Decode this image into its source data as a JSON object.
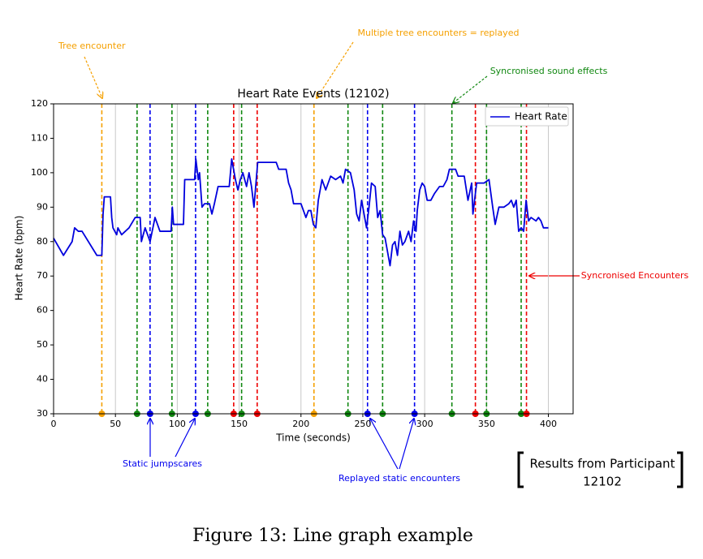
{
  "chart_data": {
    "type": "line",
    "title": "Heart Rate Events (12102)",
    "x_label": "Time (seconds)",
    "y_label": "Heart Rate (bpm)",
    "xlim": [
      0,
      420
    ],
    "ylim": [
      30,
      120
    ],
    "xticks": [
      0,
      50,
      100,
      150,
      200,
      250,
      300,
      350,
      400
    ],
    "yticks": [
      30,
      40,
      50,
      60,
      70,
      80,
      90,
      100,
      110,
      120
    ],
    "grid": "x",
    "legend": "upper right",
    "x": [
      0,
      8,
      15,
      17,
      20,
      23,
      35,
      39,
      40,
      41,
      46,
      47,
      48,
      51,
      52,
      55,
      61,
      66,
      70,
      71,
      74,
      77,
      78,
      82,
      86,
      87,
      95,
      96,
      97,
      105,
      106,
      114,
      115,
      117,
      118,
      120,
      122,
      126,
      128,
      130,
      133,
      142,
      144,
      147,
      149,
      151,
      153,
      156,
      158,
      160,
      162,
      165,
      180,
      182,
      188,
      190,
      192,
      194,
      200,
      202,
      204,
      206,
      208,
      210,
      212,
      214,
      217,
      220,
      222,
      224,
      228,
      232,
      234,
      236,
      240,
      243,
      245,
      247,
      249,
      251,
      253,
      255,
      257,
      260,
      262,
      264,
      266,
      268,
      270,
      272,
      274,
      276,
      278,
      280,
      282,
      284,
      287,
      289,
      291,
      293,
      294,
      296,
      298,
      300,
      302,
      305,
      308,
      312,
      315,
      318,
      320,
      325,
      327,
      332,
      335,
      338,
      339,
      342,
      348,
      352,
      355,
      357,
      360,
      364,
      368,
      370,
      372,
      374,
      376,
      378,
      380,
      382,
      384,
      386,
      390,
      392,
      394,
      396,
      400
    ],
    "series": [
      {
        "name": "Heart Rate",
        "color": "#0000dd",
        "values": [
          81,
          76,
          80,
          84,
          83,
          83,
          76,
          76,
          88,
          93,
          93,
          87,
          84,
          82,
          84,
          82,
          84,
          87,
          87,
          80,
          84,
          81,
          80,
          87,
          83,
          83,
          83,
          90,
          85,
          85,
          98,
          98,
          104,
          98,
          100,
          90,
          91,
          91,
          88,
          91,
          96,
          96,
          104,
          98,
          95,
          98,
          100,
          96,
          100,
          96,
          90,
          103,
          103,
          101,
          101,
          97,
          95,
          91,
          91,
          89,
          87,
          89,
          89,
          85,
          84,
          92,
          98,
          95,
          97,
          99,
          98,
          99,
          97,
          101,
          100,
          95,
          88,
          86,
          92,
          88,
          84,
          90,
          97,
          96,
          87,
          89,
          82,
          81,
          77,
          73,
          79,
          80,
          76,
          83,
          79,
          80,
          83,
          80,
          86,
          83,
          89,
          95,
          97,
          96,
          92,
          92,
          94,
          96,
          96,
          98,
          101,
          101,
          99,
          99,
          92,
          97,
          88,
          97,
          97,
          98,
          90,
          85,
          90,
          90,
          91,
          92,
          90,
          92,
          83,
          84,
          83,
          92,
          86,
          87,
          86,
          87,
          86,
          84,
          84
        ]
      }
    ],
    "events": {
      "x": [
        39,
        67.5,
        78,
        95.7,
        114.8,
        124.6,
        145.6,
        152,
        164.6,
        210.5,
        238,
        253.8,
        266,
        291.8,
        322,
        341,
        350,
        378,
        382.3
      ],
      "colors": [
        "#f5a000",
        "#118811",
        "#0000ee",
        "#118811",
        "#0000ee",
        "#118811",
        "#ee0000",
        "#118811",
        "#ee0000",
        "#f5a000",
        "#118811",
        "#0000ee",
        "#118811",
        "#0000ee",
        "#118811",
        "#ee0000",
        "#118811",
        "#118811",
        "#ee0000"
      ]
    },
    "annotations": [
      "Tree encounter",
      "Multiple tree encounters = replayed",
      "Syncronised sound effects",
      "Syncronised Encounters",
      "Static jumpscares",
      "Replayed static encounters"
    ],
    "annotation_colors": [
      "#f5a000",
      "#f5a000",
      "#118811",
      "#ee0000",
      "#0000ee",
      "#0000ee"
    ]
  },
  "results": [
    "Results from Participant",
    "12102"
  ],
  "caption": "Figure 13: Line graph example"
}
